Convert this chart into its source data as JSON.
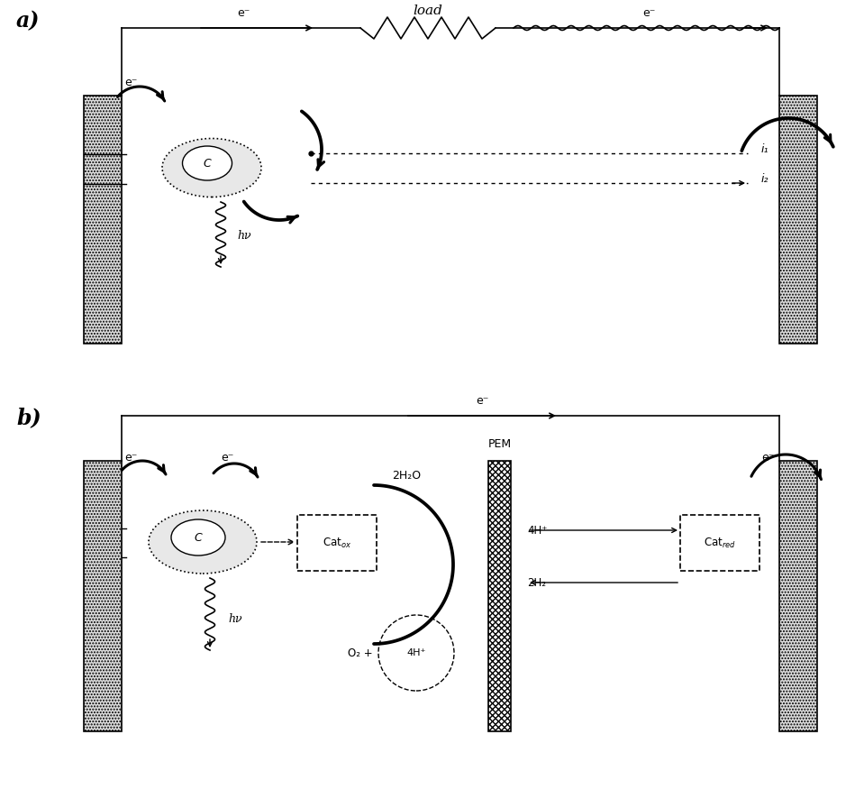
{
  "fig_width": 9.59,
  "fig_height": 8.96,
  "bg_color": "#ffffff",
  "panel_a": {
    "label": "a)",
    "load_label": "load",
    "e_label": "e⁻",
    "i1_label": "i₁",
    "i2_label": "i₂",
    "hv_label": "hν",
    "C_label": "C"
  },
  "panel_b": {
    "label": "b)",
    "e_label": "e⁻",
    "pem_label": "PEM",
    "h2o_label": "2H₂O",
    "o2_label": "O₂ +",
    "4hp_circle": "4H⁺",
    "4hp_label": "4H⁺",
    "2h2_label": "2H₂",
    "hv_label": "hν",
    "C_label": "C",
    "cat_ox_label": "Catₒₓ",
    "cat_red_label": "Catᵣₑ₄"
  },
  "colors": {
    "black": "#000000",
    "gray_fill": "#cccccc",
    "dotted_fill": "#aaaaaa"
  }
}
